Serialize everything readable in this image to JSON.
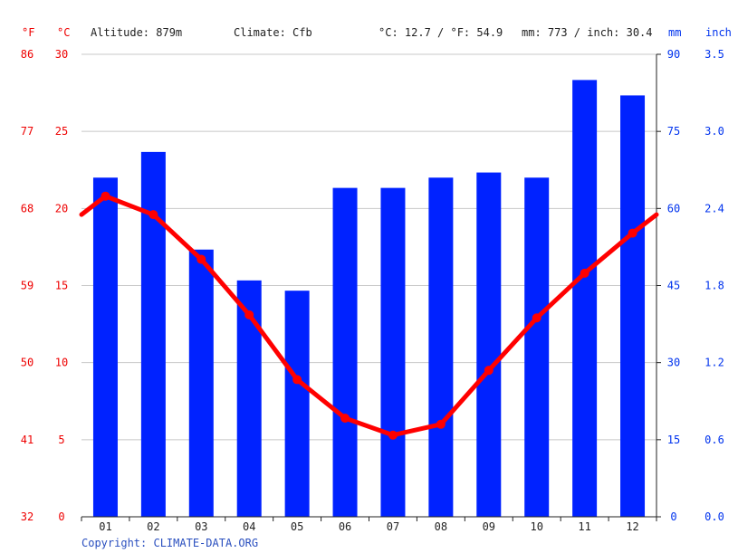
{
  "header": {
    "f_unit": "°F",
    "c_unit": "°C",
    "altitude": "Altitude: 879m",
    "climate": "Climate: Cfb",
    "temp_summary": "°C: 12.7 / °F: 54.9",
    "precip_summary": "mm: 773 / inch: 30.4",
    "mm_unit": "mm",
    "inch_unit": "inch"
  },
  "copyright": "Copyright: CLIMATE-DATA.ORG",
  "colors": {
    "temperature": "#ff0000",
    "precipitation": "#0022ff",
    "axis_temp": "#ee0000",
    "axis_precip": "#0033ee"
  },
  "chart_data": {
    "type": "bar",
    "categories": [
      "01",
      "02",
      "03",
      "04",
      "05",
      "06",
      "07",
      "08",
      "09",
      "10",
      "11",
      "12"
    ],
    "series": [
      {
        "type": "bar",
        "axis": "right",
        "unit": "mm",
        "values": [
          66,
          71,
          52,
          46,
          44,
          64,
          64,
          66,
          67,
          66,
          85,
          82
        ]
      },
      {
        "type": "line",
        "axis": "left",
        "unit": "°C",
        "values": [
          20.8,
          19.6,
          16.7,
          13.1,
          8.9,
          6.4,
          5.3,
          6.0,
          9.5,
          12.9,
          15.8,
          18.4
        ]
      }
    ],
    "temp_line_edges": [
      19.6,
      19.6
    ],
    "left_axis_c": {
      "range": [
        0,
        30
      ],
      "ticks": [
        "0",
        "5",
        "10",
        "15",
        "20",
        "25",
        "30"
      ]
    },
    "left_axis_f": {
      "ticks": [
        "32",
        "41",
        "50",
        "59",
        "68",
        "77",
        "86"
      ]
    },
    "right_axis_mm": {
      "range": [
        0,
        90
      ],
      "ticks": [
        "0",
        "15",
        "30",
        "45",
        "60",
        "75",
        "90"
      ]
    },
    "right_axis_inch": {
      "ticks": [
        "0.0",
        "0.6",
        "1.2",
        "1.8",
        "2.4",
        "3.0",
        "3.5"
      ]
    },
    "grid": true
  }
}
